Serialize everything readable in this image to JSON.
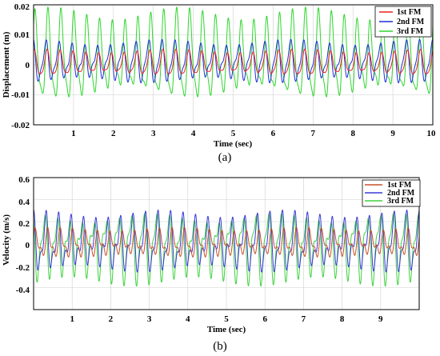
{
  "chart_data": [
    {
      "type": "line",
      "panel_label": "(a)",
      "xlabel": "Time (sec)",
      "ylabel": "Displacement (m)",
      "xlim": [
        0,
        10
      ],
      "ylim": [
        -0.02,
        0.02
      ],
      "xticks": [
        1,
        2,
        3,
        4,
        5,
        6,
        7,
        8,
        9,
        10
      ],
      "xtick_labels": [
        "1",
        "2",
        "3",
        "4",
        "5",
        "6",
        "7",
        "8",
        "9",
        "10"
      ],
      "yticks": [
        -0.02,
        -0.01,
        0,
        0.01,
        0.02
      ],
      "ytick_labels": [
        "-0.02",
        "-0.01",
        "0",
        "0.01",
        "0.02"
      ],
      "grid": true,
      "legend_position": "top-right",
      "series": [
        {
          "name": "1st FM",
          "color": "#e8221f",
          "frequency_hz": 3.1,
          "amplitude": 0.004,
          "offset": 0.0003
        },
        {
          "name": "2nd FM",
          "color": "#1a2fd6",
          "frequency_hz": 3.1,
          "amplitude": 0.0065,
          "offset": 0.001
        },
        {
          "name": "3rd FM",
          "color": "#2ed62e",
          "frequency_hz": 3.1,
          "amplitude": 0.014,
          "offset": 0.002
        }
      ]
    },
    {
      "type": "line",
      "panel_label": "(b)",
      "xlabel": "Time (sec)",
      "ylabel": "Velocity (m/s)",
      "xlim": [
        0,
        10
      ],
      "ylim": [
        -0.6,
        0.6
      ],
      "xticks": [
        1,
        2,
        3,
        4,
        5,
        6,
        7,
        8,
        9
      ],
      "xtick_labels": [
        "1",
        "2",
        "3",
        "4",
        "5",
        "6",
        "7",
        "8",
        "9"
      ],
      "yticks": [
        -0.4,
        -0.2,
        0,
        0.2,
        0.4,
        0.6
      ],
      "ytick_labels": [
        "-0.4",
        "-0.2",
        "0",
        "0.2",
        "0.4",
        "0.6"
      ],
      "grid": true,
      "legend_position": "top-right",
      "series": [
        {
          "name": "1st FM",
          "color": "#c8502a",
          "frequency_hz": 3.1,
          "amplitude": 0.12,
          "offset": 0.0
        },
        {
          "name": "2nd FM",
          "color": "#3a3ad8",
          "frequency_hz": 3.1,
          "amplitude": 0.25,
          "offset": 0.0
        },
        {
          "name": "3rd FM",
          "color": "#3fd23f",
          "frequency_hz": 3.1,
          "amplitude": 0.3,
          "offset": -0.02
        }
      ]
    }
  ]
}
